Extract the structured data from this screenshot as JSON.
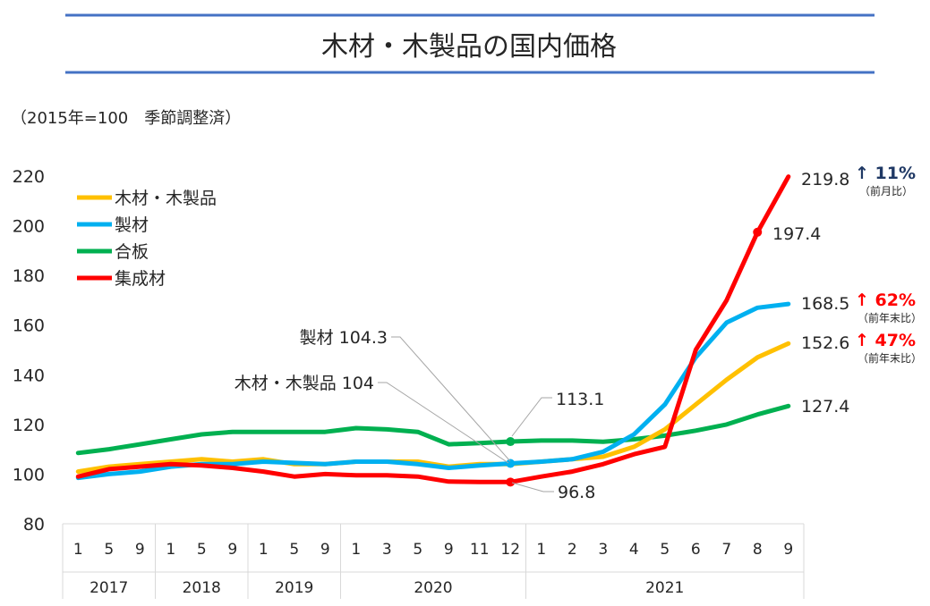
{
  "chart_data": {
    "type": "line",
    "title": "木材・木製品の国内価格",
    "unit_note": "（2015年=100　季節調整済）",
    "ylim": [
      80,
      220
    ],
    "yticks": [
      80,
      100,
      120,
      140,
      160,
      180,
      200,
      220
    ],
    "x_months": [
      "1",
      "5",
      "9",
      "1",
      "5",
      "9",
      "1",
      "5",
      "9",
      "1",
      "3",
      "5",
      "9",
      "11",
      "12",
      "1",
      "2",
      "3",
      "4",
      "5",
      "6",
      "7",
      "8",
      "9"
    ],
    "year_groups": [
      {
        "label": "2017",
        "count": 3
      },
      {
        "label": "2018",
        "count": 3
      },
      {
        "label": "2019",
        "count": 3
      },
      {
        "label": "2020",
        "count": 6
      },
      {
        "label": "2021",
        "count": 9
      }
    ],
    "series": [
      {
        "name": "木材・木製品",
        "color": "#FFC000",
        "values": [
          101,
          103,
          104,
          105,
          106,
          105,
          106,
          104,
          104,
          105,
          105,
          105,
          103,
          104,
          104,
          105,
          106,
          107,
          111,
          118,
          128,
          138,
          147,
          152.6
        ]
      },
      {
        "name": "製材",
        "color": "#00B0F0",
        "values": [
          98.5,
          100,
          101,
          103,
          104,
          104,
          105,
          104.5,
          104,
          105,
          105,
          104,
          102.5,
          103.5,
          104.3,
          105,
          106,
          109,
          116,
          128,
          147,
          161,
          167,
          168.5
        ]
      },
      {
        "name": "合板",
        "color": "#00B050",
        "values": [
          108.5,
          110,
          112,
          114,
          116,
          117,
          117,
          117,
          117,
          118.5,
          118,
          117,
          112,
          112.5,
          113.1,
          113.5,
          113.5,
          113,
          114,
          115.5,
          117.5,
          120,
          124,
          127.4
        ]
      },
      {
        "name": "集成材",
        "color": "#FF0000",
        "values": [
          99,
          102,
          103,
          104,
          103.5,
          102.5,
          101,
          99,
          100,
          99.5,
          99.5,
          99,
          97,
          96.8,
          96.8,
          99,
          101,
          104,
          108,
          111,
          150,
          170,
          197.4,
          219.8
        ]
      }
    ],
    "annotations": {
      "end_labels": [
        "219.8",
        "197.4",
        "168.5",
        "152.6",
        "127.4"
      ],
      "callouts": [
        "製材 104.3",
        "木材・木製品 104",
        "113.1",
        "96.8"
      ],
      "changes": [
        {
          "text": "↑ 11%",
          "sub": "（前月比）",
          "color": "#1F3864"
        },
        {
          "text": "↑ 62%",
          "sub": "（前年末比）",
          "color": "#FF0000"
        },
        {
          "text": "↑ 47%",
          "sub": "（前年末比）",
          "color": "#FF0000"
        }
      ]
    }
  }
}
